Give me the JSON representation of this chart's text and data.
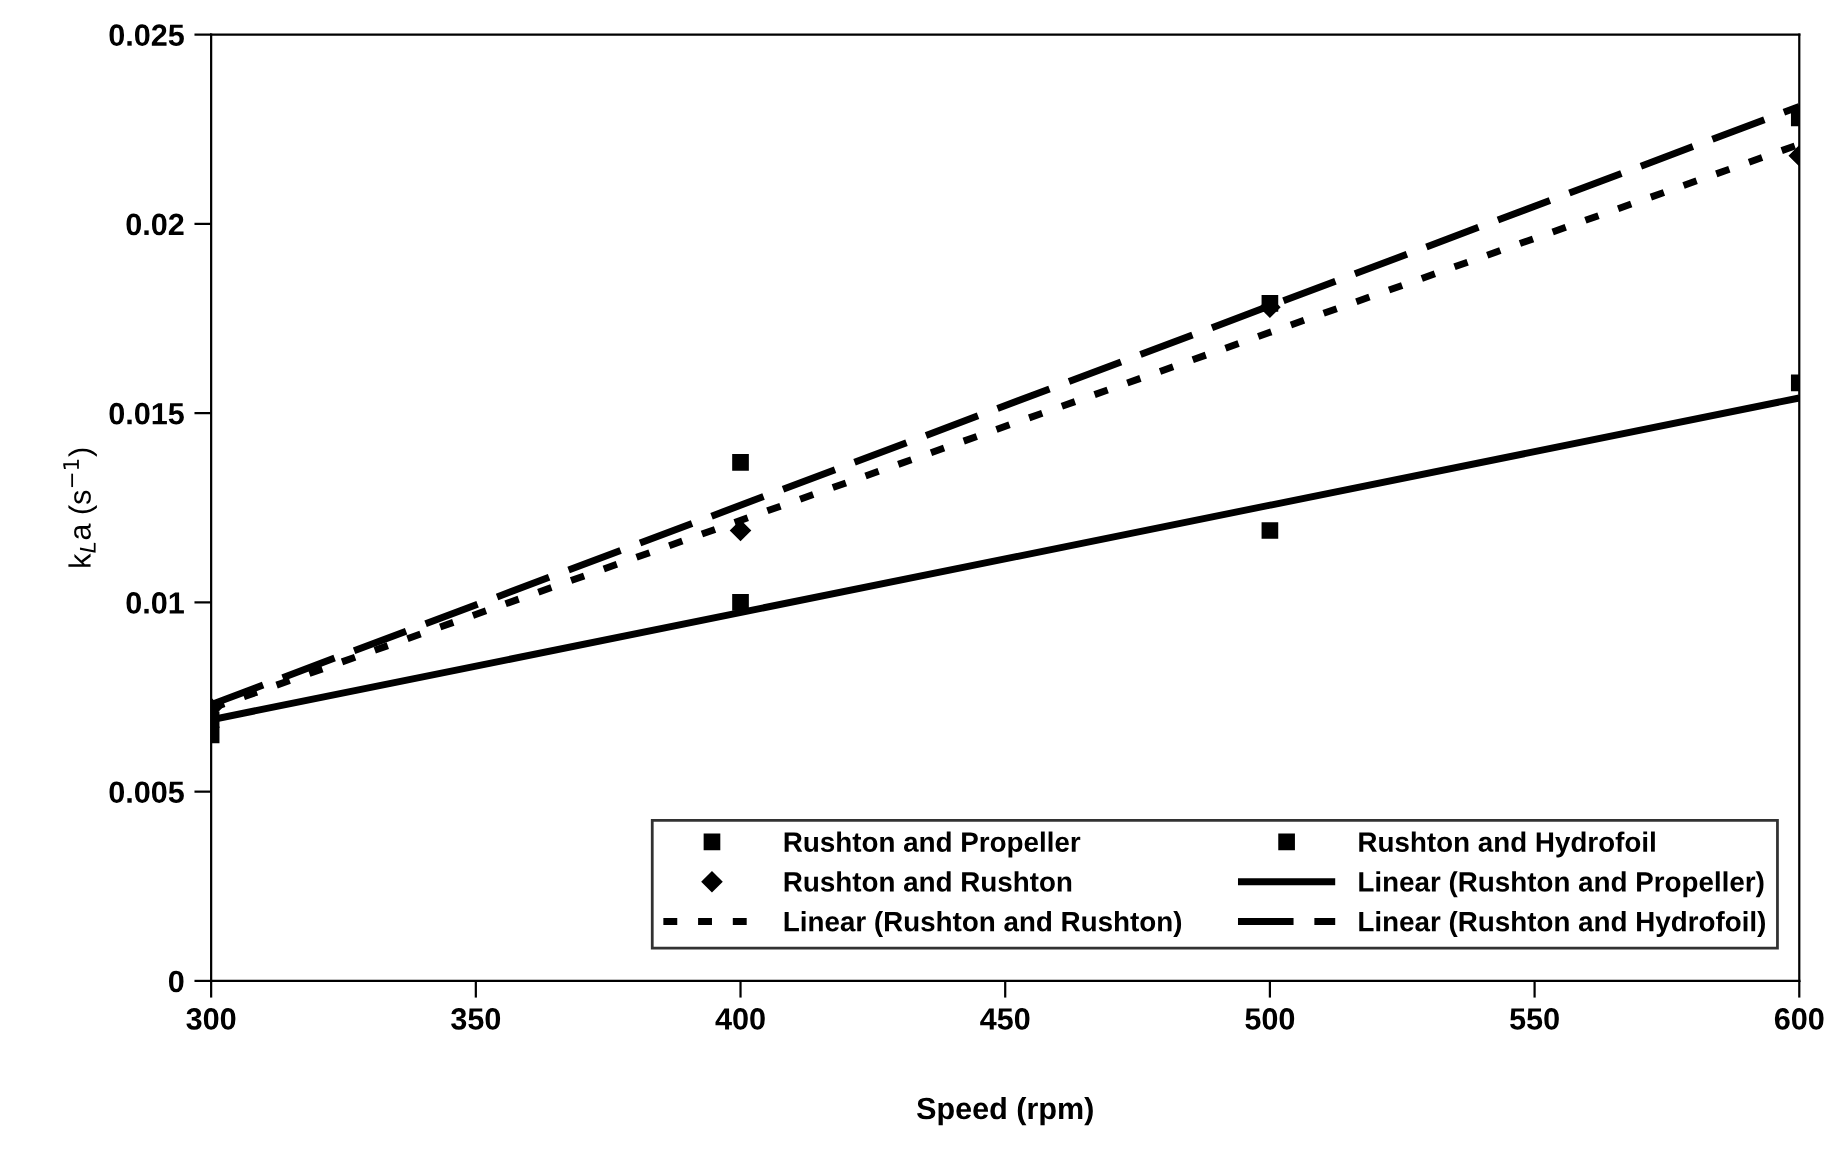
{
  "chart_data": {
    "type": "scatter",
    "xlabel": "Speed (rpm)",
    "ylabel": "k$_{L}$a (s$^{−1}$)",
    "xlim": [
      300,
      600
    ],
    "ylim": [
      0,
      0.025
    ],
    "xticks": [
      300,
      350,
      400,
      450,
      500,
      550,
      600
    ],
    "yticks": [
      0,
      0.005,
      0.01,
      0.015,
      0.02,
      0.025
    ],
    "grid": false,
    "legend": "bottom right",
    "series": [
      {
        "name": "Rushton and Propeller",
        "type": "scatter",
        "marker": "square",
        "color": "#000000",
        "x": [
          300,
          400,
          500,
          600
        ],
        "values": [
          0.0069,
          0.01,
          0.0119,
          0.0158
        ]
      },
      {
        "name": "Rushton and Hydrofoil",
        "type": "scatter",
        "marker": "square",
        "color": "#000000",
        "x": [
          300,
          400,
          500,
          600
        ],
        "values": [
          0.0065,
          0.0137,
          0.0179,
          0.0228
        ]
      },
      {
        "name": "Rushton and Rushton",
        "type": "scatter",
        "marker": "diamond",
        "color": "#000000",
        "x": [
          300,
          400,
          500,
          600
        ],
        "values": [
          0.0072,
          0.0119,
          0.0178,
          0.0218
        ]
      },
      {
        "name": "Linear (Rushton and Propeller)",
        "type": "line",
        "line_style": "solid",
        "color": "#000000",
        "x": [
          300,
          600
        ],
        "values": [
          0.0069,
          0.0154
        ]
      },
      {
        "name": "Linear (Rushton and Rushton)",
        "type": "line",
        "line_style": "dotted",
        "color": "#000000",
        "x": [
          300,
          600
        ],
        "values": [
          0.0072,
          0.0221
        ]
      },
      {
        "name": "Linear (Rushton and Hydrofoil)",
        "type": "line",
        "line_style": "dashed",
        "color": "#000000",
        "x": [
          300,
          600
        ],
        "values": [
          0.0073,
          0.0231
        ]
      }
    ]
  }
}
